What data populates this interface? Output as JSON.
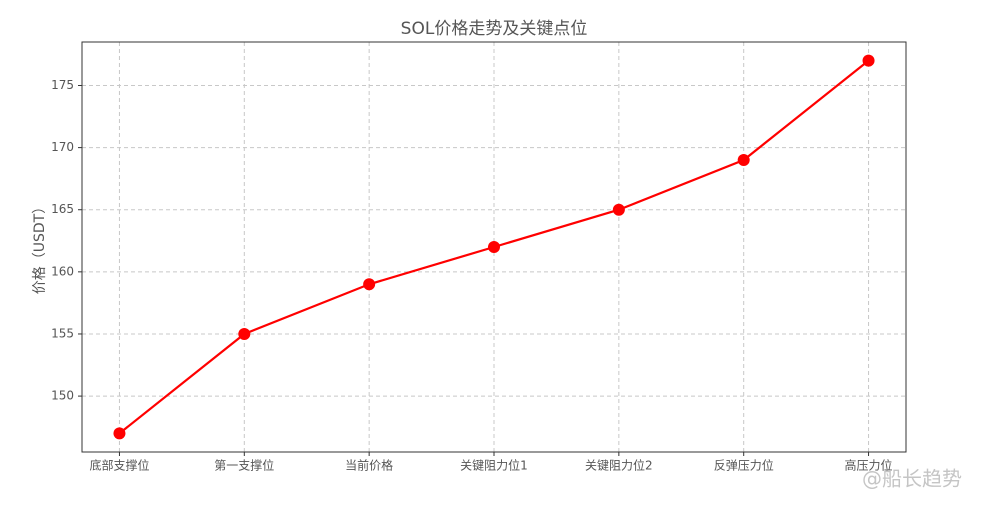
{
  "chart_data": {
    "type": "line",
    "title": "SOL价格走势及关键点位",
    "y_label": "价格（USDT）",
    "categories": [
      "底部支撑位",
      "第一支撑位",
      "当前价格",
      "关键阻力位1",
      "关键阻力位2",
      "反弹压力位",
      "高压力位"
    ],
    "series": [
      {
        "name": "SOL",
        "color": "#ff0000",
        "values": [
          147,
          155,
          159,
          162,
          165,
          169,
          177
        ]
      }
    ],
    "ylim": [
      145.5,
      178.5
    ],
    "yticks": [
      150,
      155,
      160,
      165,
      170,
      175
    ],
    "grid": true,
    "watermark": "@船长趋势"
  }
}
